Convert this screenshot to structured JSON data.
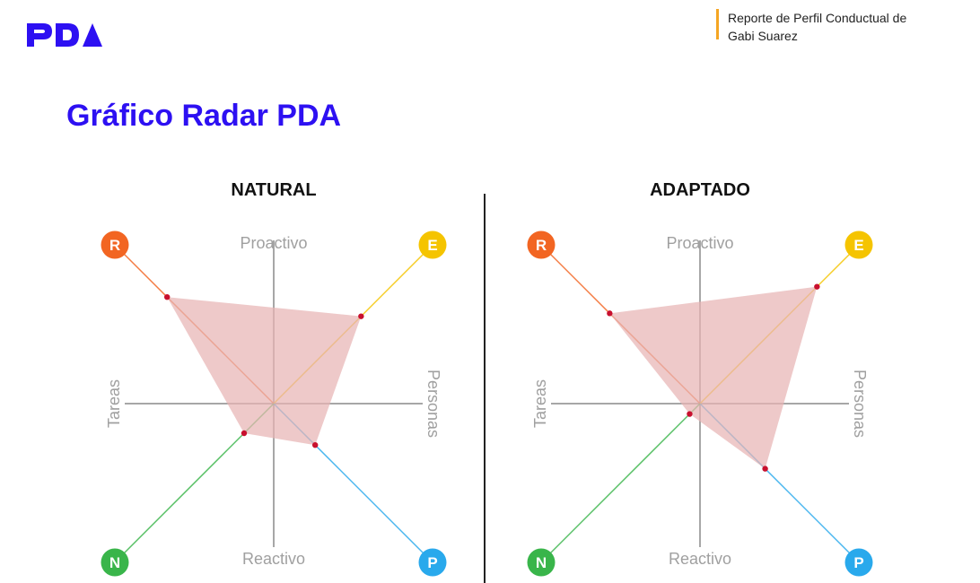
{
  "brand": {
    "logo_text": "PDA",
    "color": "#2d10f2"
  },
  "header": {
    "report_line1": "Reporte de Perfil Conductual de",
    "report_line2": "Gabi Suarez",
    "accent": "#f5a623"
  },
  "page": {
    "title": "Gráfico Radar PDA"
  },
  "chart_data": [
    {
      "type": "radar",
      "title": "NATURAL",
      "axes": {
        "top": "Proactivo",
        "bottom": "Reactivo",
        "left": "Tareas",
        "right": "Personas"
      },
      "dimensions": [
        {
          "key": "R",
          "color": "#f26522",
          "value": 0.72
        },
        {
          "key": "E",
          "color": "#f5c400",
          "value": 0.59
        },
        {
          "key": "P",
          "color": "#29a9ec",
          "value": 0.28
        },
        {
          "key": "N",
          "color": "#39b54a",
          "value": 0.2
        }
      ],
      "fill_color": "#e8b4b4",
      "point_color": "#c8102e"
    },
    {
      "type": "radar",
      "title": "ADAPTADO",
      "axes": {
        "top": "Proactivo",
        "bottom": "Reactivo",
        "left": "Tareas",
        "right": "Personas"
      },
      "dimensions": [
        {
          "key": "R",
          "color": "#f26522",
          "value": 0.61
        },
        {
          "key": "E",
          "color": "#f5c400",
          "value": 0.79
        },
        {
          "key": "P",
          "color": "#29a9ec",
          "value": 0.44
        },
        {
          "key": "N",
          "color": "#39b54a",
          "value": 0.07
        }
      ],
      "fill_color": "#e8b4b4",
      "point_color": "#c8102e"
    }
  ]
}
